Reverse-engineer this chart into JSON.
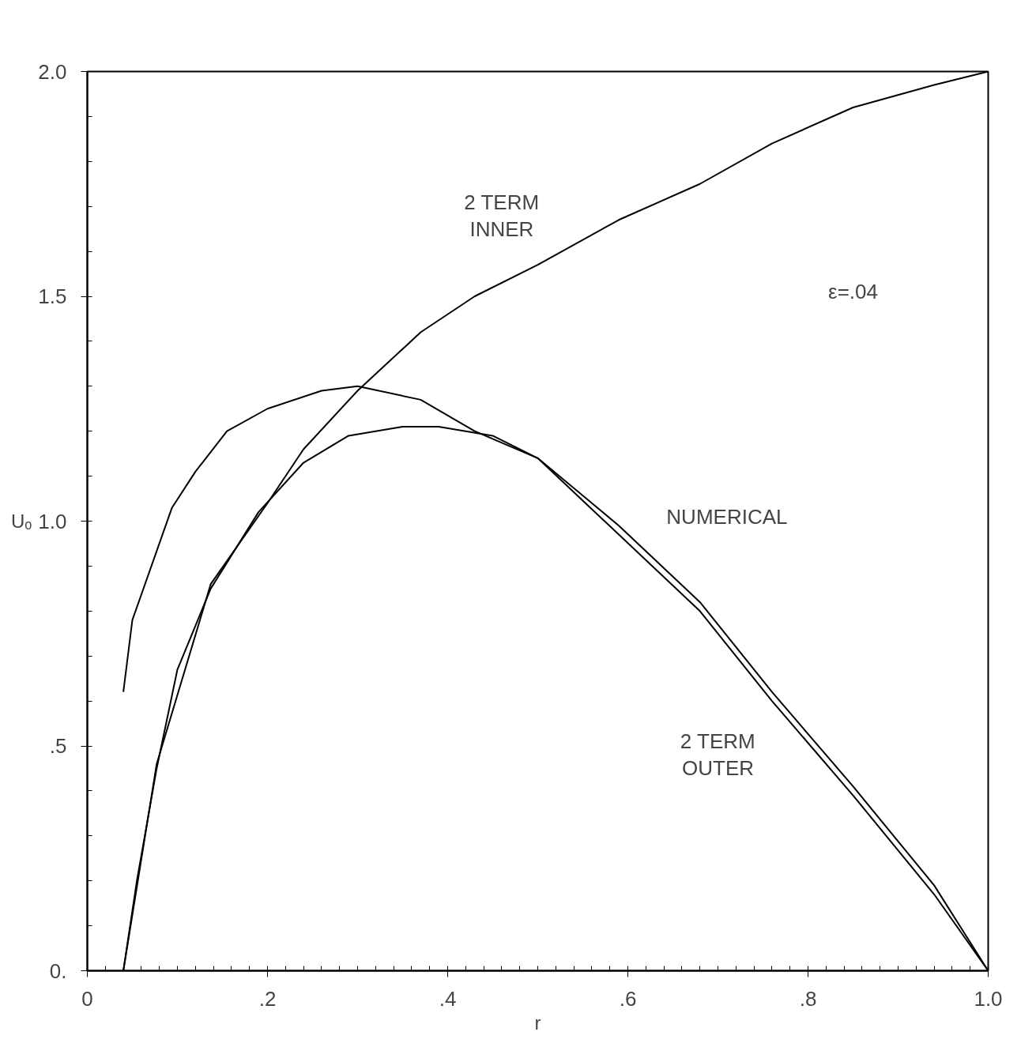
{
  "chart_data": {
    "type": "line",
    "xlabel": "r",
    "ylabel": "Uₒ",
    "xlim": [
      0,
      1.0
    ],
    "ylim": [
      0,
      2.0
    ],
    "xticks": [
      0,
      {
        "value": 0.2,
        "label": ".2"
      },
      {
        "value": 0.4,
        "label": ".4"
      },
      {
        "value": 0.6,
        "label": ".6"
      },
      {
        "value": 0.8,
        "label": ".8"
      },
      {
        "value": 1.0,
        "label": "1.0"
      }
    ],
    "yticks": [
      {
        "value": 0,
        "label": "0."
      },
      {
        "value": 0.5,
        "label": ".5"
      },
      {
        "value": 1.0,
        "label": "1.0"
      },
      {
        "value": 1.5,
        "label": "1.5"
      },
      {
        "value": 2.0,
        "label": "2.0"
      }
    ],
    "grid": false,
    "marker": "none",
    "line_style": "solid",
    "series": [
      {
        "color": "#000000",
        "x": [
          0.04,
          0.05,
          0.094,
          0.12,
          0.155,
          0.2,
          0.26,
          0.3,
          0.37,
          0.43,
          0.5,
          0.59,
          0.68,
          0.76,
          0.85,
          0.94,
          1.0
        ],
        "values": [
          0.62,
          0.78,
          1.03,
          1.11,
          1.2,
          1.25,
          1.29,
          1.3,
          1.27,
          1.2,
          1.14,
          0.99,
          0.82,
          0.62,
          0.41,
          0.19,
          0
        ]
      },
      {
        "color": "#000000",
        "x": [
          0.04,
          0.055,
          0.077,
          0.1,
          0.137,
          0.19,
          0.24,
          0.29,
          0.35,
          0.39,
          0.45,
          0.5,
          0.59,
          0.68,
          0.76,
          0.85,
          0.94,
          1.0
        ],
        "values": [
          0,
          0.2,
          0.45,
          0.67,
          0.85,
          1.02,
          1.13,
          1.19,
          1.21,
          1.21,
          1.19,
          1.14,
          0.97,
          0.8,
          0.6,
          0.39,
          0.17,
          0
        ]
      },
      {
        "color": "#000000",
        "x": [
          0.04,
          0.077,
          0.137,
          0.2,
          0.24,
          0.3,
          0.37,
          0.43,
          0.5,
          0.59,
          0.68,
          0.76,
          0.85,
          0.94,
          1.0
        ],
        "values": [
          0,
          0.46,
          0.86,
          1.04,
          1.16,
          1.29,
          1.42,
          1.5,
          1.57,
          1.67,
          1.75,
          1.84,
          1.92,
          1.97,
          2.0
        ]
      }
    ],
    "annotations": [
      "2 TERM\nINNER",
      "ε=.04",
      "NUMERICAL",
      "2 TERM\nOUTER"
    ]
  }
}
